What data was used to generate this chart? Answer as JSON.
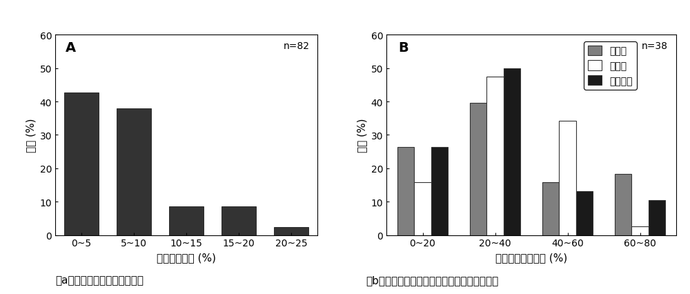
{
  "chart_a": {
    "categories": [
      "0~5",
      "5~10",
      "10~15",
      "15~20",
      "20~25"
    ],
    "values": [
      42.7,
      38.0,
      8.5,
      8.5,
      2.5
    ],
    "bar_color": "#333333",
    "xlabel": "粘土矿物含量 (%)",
    "ylabel": "频率 (%)",
    "ylim": [
      0,
      60
    ],
    "yticks": [
      0,
      10,
      20,
      30,
      40,
      50,
      60
    ],
    "label": "A",
    "n_label": "n=82"
  },
  "chart_b": {
    "categories": [
      "0~20",
      "20~40",
      "40~60",
      "60~80"
    ],
    "series_names": [
      "绿泥石",
      "伊利石",
      "伊蒙间层"
    ],
    "series_values": {
      "绿泥石": [
        26.3,
        39.5,
        15.8,
        18.4
      ],
      "伊利石": [
        15.8,
        47.4,
        34.2,
        2.6
      ],
      "伊蒙间层": [
        26.3,
        50.0,
        13.2,
        10.5
      ]
    },
    "colors": {
      "绿泥石": "#7f7f7f",
      "伊利石": "#ffffff",
      "伊蒙间层": "#1a1a1a"
    },
    "edge_colors": {
      "绿泥石": "#333333",
      "伊利石": "#333333",
      "伊蒙间层": "#333333"
    },
    "xlabel": "粘土矿物相对含量 (%)",
    "ylabel": "频率 (%)",
    "ylim": [
      0,
      60
    ],
    "yticks": [
      0,
      10,
      20,
      30,
      40,
      50,
      60
    ],
    "label": "B",
    "n_label": "n=38"
  },
  "caption_a": "（a）总粘土矿物分布直方图；",
  "caption_b": "（b）不同类型粘土矿物相对含量的分布直方图",
  "fig_width": 10.0,
  "fig_height": 4.27,
  "dpi": 100
}
